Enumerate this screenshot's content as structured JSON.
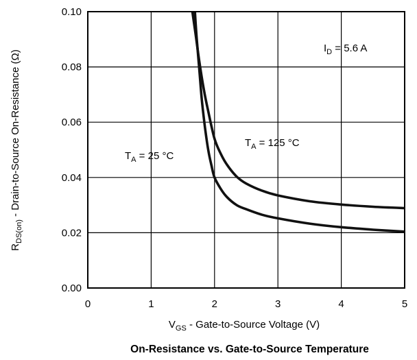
{
  "chart_data": {
    "type": "line",
    "title": "On-Resistance vs. Gate-to-Source Temperature",
    "xlabel": {
      "main": "V",
      "sub": "GS",
      "rest": " - Gate-to-Source Voltage (V)"
    },
    "ylabel": {
      "main": "R",
      "sub": "DS(on)",
      "rest": " - Drain-to-Source On-Resistance (Ω)"
    },
    "xlim": [
      0,
      5
    ],
    "ylim": [
      0,
      0.1
    ],
    "x_ticks": [
      "0",
      "1",
      "2",
      "3",
      "4",
      "5"
    ],
    "y_ticks": [
      "0.00",
      "0.02",
      "0.04",
      "0.06",
      "0.08",
      "0.10"
    ],
    "grid": true,
    "annotations": [
      {
        "id": "id",
        "main": "I",
        "sub": "D",
        "rest": " = 5.6 A"
      },
      {
        "id": "t25",
        "main": "T",
        "sub": "A",
        "rest": " = 25 °C"
      },
      {
        "id": "t125",
        "main": "T",
        "sub": "A",
        "rest": " = 125 °C"
      }
    ],
    "series": [
      {
        "x": [
          1.69,
          1.72,
          1.76,
          1.8,
          1.85,
          1.9,
          1.95,
          2.0,
          2.1,
          2.2,
          2.35,
          2.5,
          2.75,
          3.0,
          3.5,
          4.0,
          4.5,
          5.0
        ],
        "y": [
          0.1,
          0.09,
          0.079,
          0.068,
          0.058,
          0.05,
          0.0445,
          0.04,
          0.0358,
          0.0328,
          0.03,
          0.0285,
          0.0265,
          0.0252,
          0.0233,
          0.022,
          0.0211,
          0.0204
        ]
      },
      {
        "x": [
          1.65,
          1.7,
          1.76,
          1.83,
          1.9,
          2.0,
          2.1,
          2.2,
          2.35,
          2.5,
          2.75,
          3.0,
          3.5,
          4.0,
          4.5,
          5.0
        ],
        "y": [
          0.1,
          0.092,
          0.082,
          0.072,
          0.064,
          0.054,
          0.0485,
          0.0445,
          0.0403,
          0.0378,
          0.0352,
          0.0335,
          0.0314,
          0.0302,
          0.0294,
          0.0289
        ]
      }
    ]
  }
}
